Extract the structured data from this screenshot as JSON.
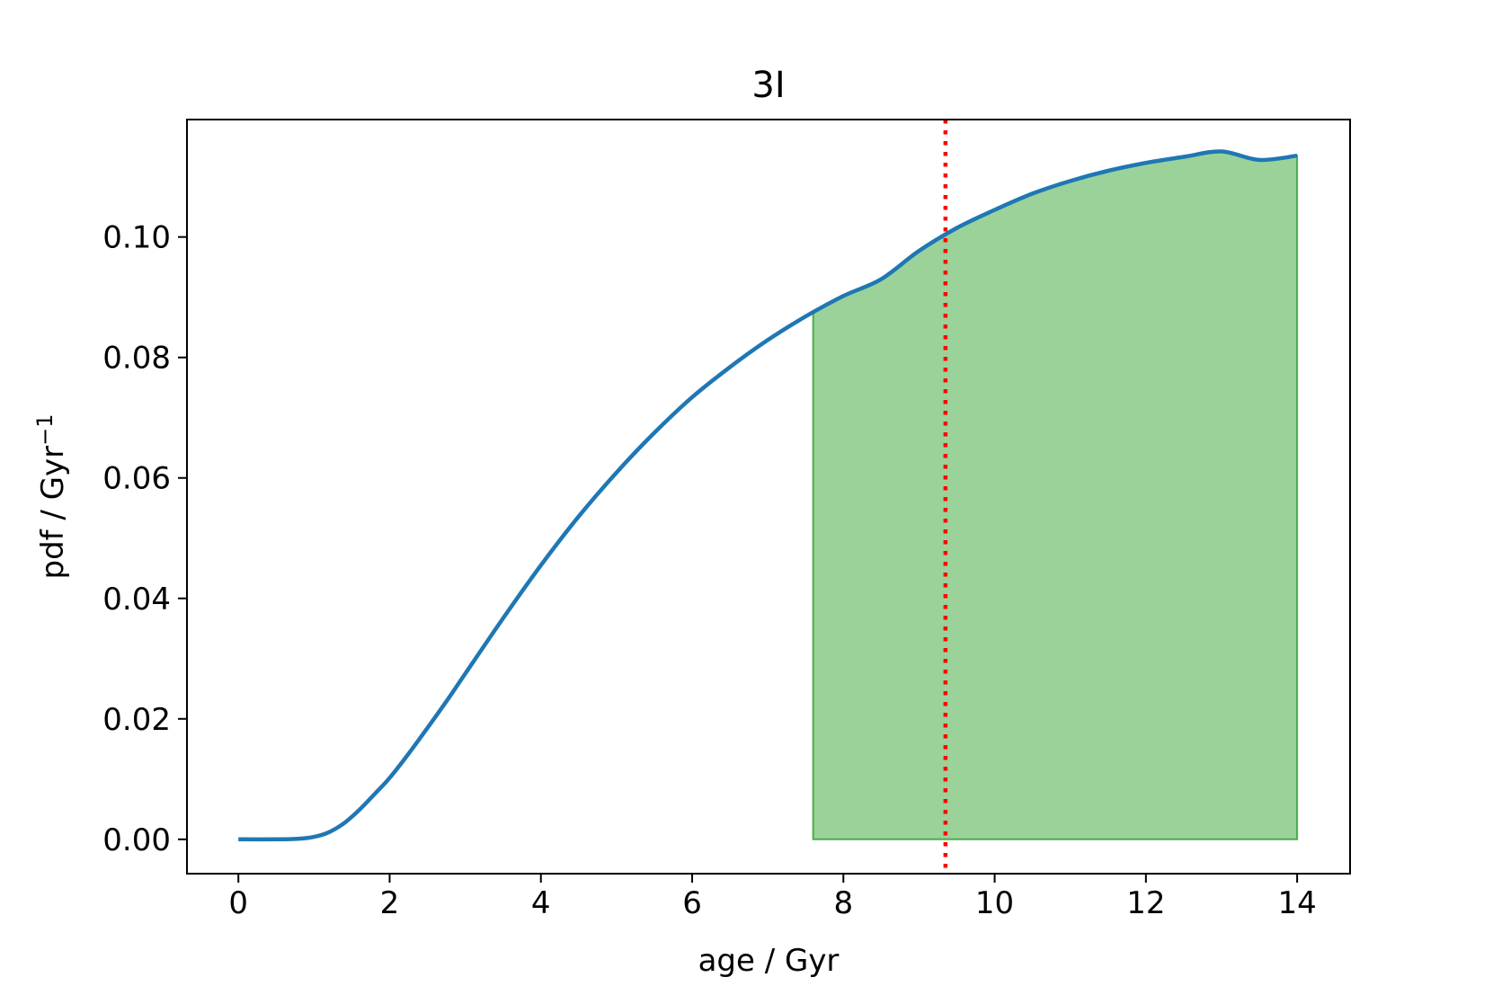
{
  "chart_data": {
    "type": "line",
    "title": "3I",
    "xlabel": "age / Gyr",
    "ylabel": "pdf / Gyr",
    "ylabel_exponent": "−1",
    "xlim": [
      -0.68,
      14.7
    ],
    "ylim": [
      -0.0057,
      0.1195
    ],
    "xticks": [
      0,
      2,
      4,
      6,
      8,
      10,
      12,
      14
    ],
    "yticks": [
      0.0,
      0.02,
      0.04,
      0.06,
      0.08,
      0.1
    ],
    "xtick_labels": [
      "0",
      "2",
      "4",
      "6",
      "8",
      "10",
      "12",
      "14"
    ],
    "ytick_labels": [
      "0.00",
      "0.02",
      "0.04",
      "0.06",
      "0.08",
      "0.10"
    ],
    "grid": false,
    "series": [
      {
        "color": "#1f77b4",
        "x": [
          0,
          0.5,
          0.8,
          1.0,
          1.2,
          1.4,
          1.6,
          1.8,
          2.0,
          2.25,
          2.5,
          2.75,
          3.0,
          3.5,
          4.0,
          4.5,
          5.0,
          5.5,
          6.0,
          6.5,
          7.0,
          7.5,
          8.0,
          8.5,
          9.0,
          9.5,
          10.0,
          10.5,
          11.0,
          11.5,
          12.0,
          12.5,
          13.0,
          13.5,
          14.0
        ],
        "y": [
          0.0,
          0.0,
          0.0001,
          0.0004,
          0.0012,
          0.0027,
          0.0049,
          0.0075,
          0.0102,
          0.0142,
          0.0185,
          0.0229,
          0.0275,
          0.0367,
          0.0455,
          0.0536,
          0.0609,
          0.0675,
          0.0734,
          0.0784,
          0.0829,
          0.0868,
          0.0902,
          0.093,
          0.0977,
          0.1015,
          0.1045,
          0.1072,
          0.1093,
          0.111,
          0.1123,
          0.1133,
          0.1142,
          0.1128,
          0.1135
        ]
      }
    ],
    "shaded_region": {
      "x_from": 7.6,
      "x_to": 14.0,
      "color": "#2ca02c",
      "opacity": 0.48
    },
    "vline": {
      "x": 9.35,
      "color": "#ff0000",
      "style": "dotted"
    }
  }
}
